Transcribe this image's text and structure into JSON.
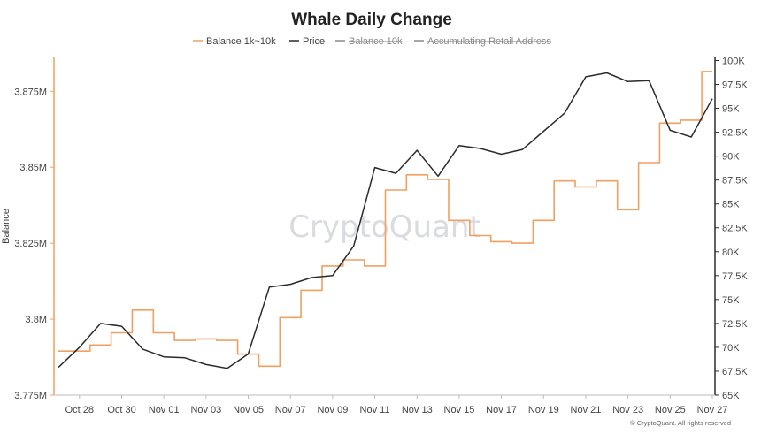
{
  "chart_data": {
    "type": "line",
    "title": "Whale Daily Change",
    "ylabel": "Balance",
    "watermark": "CryptoQuant",
    "copyright": "© CryptoQuant. All rights reserved",
    "legend": [
      {
        "name": "Balance 1k~10k",
        "color": "#f0a060",
        "active": true
      },
      {
        "name": "Price",
        "color": "#2b2b2b",
        "active": true
      },
      {
        "name": "Balance 10k",
        "color": "#888888",
        "active": false
      },
      {
        "name": "Accumulating Retail Address",
        "color": "#888888",
        "active": false
      }
    ],
    "x": [
      "Oct 27",
      "Oct 28",
      "Oct 29",
      "Oct 30",
      "Oct 31",
      "Nov 01",
      "Nov 02",
      "Nov 03",
      "Nov 04",
      "Nov 05",
      "Nov 06",
      "Nov 07",
      "Nov 08",
      "Nov 09",
      "Nov 10",
      "Nov 11",
      "Nov 12",
      "Nov 13",
      "Nov 14",
      "Nov 15",
      "Nov 16",
      "Nov 17",
      "Nov 18",
      "Nov 19",
      "Nov 20",
      "Nov 21",
      "Nov 22",
      "Nov 23",
      "Nov 24",
      "Nov 25",
      "Nov 26",
      "Nov 27"
    ],
    "x_tick_labels": [
      "Oct 28",
      "Oct 30",
      "Nov 01",
      "Nov 03",
      "Nov 05",
      "Nov 07",
      "Nov 09",
      "Nov 11",
      "Nov 13",
      "Nov 15",
      "Nov 17",
      "Nov 19",
      "Nov 21",
      "Nov 23",
      "Nov 25",
      "Nov 27"
    ],
    "y_left": {
      "ylim": [
        3.775,
        3.887
      ],
      "ticks": [
        3.775,
        3.8,
        3.825,
        3.85,
        3.875
      ],
      "tick_labels": [
        "3.775M",
        "3.8M",
        "3.825M",
        "3.85M",
        "3.875M"
      ]
    },
    "y_right": {
      "ylim": [
        65000,
        100600
      ],
      "ticks": [
        65000,
        67500,
        70000,
        72500,
        75000,
        77500,
        80000,
        82500,
        85000,
        87500,
        90000,
        92500,
        95000,
        97500,
        100000
      ],
      "tick_labels": [
        "65K",
        "67.5K",
        "70K",
        "72.5K",
        "75K",
        "77.5K",
        "80K",
        "82.5K",
        "85K",
        "87.5K",
        "90K",
        "92.5K",
        "95K",
        "97.5K",
        "100K"
      ]
    },
    "series": [
      {
        "name": "Balance 1k~10k",
        "axis": "left",
        "step": true,
        "values": [
          3.7895,
          3.7895,
          3.7915,
          3.7955,
          3.803,
          3.7955,
          3.793,
          3.7935,
          3.793,
          3.7885,
          3.7845,
          3.8005,
          3.8095,
          3.8175,
          3.8195,
          3.8175,
          3.8425,
          3.8475,
          3.846,
          3.8325,
          3.8275,
          3.8255,
          3.825,
          3.8325,
          3.8455,
          3.8435,
          3.8455,
          3.836,
          3.8515,
          3.8645,
          3.8655,
          3.8815
        ]
      },
      {
        "name": "Price",
        "axis": "right",
        "values": [
          67900,
          70000,
          72500,
          72200,
          69800,
          69000,
          68900,
          68200,
          67800,
          69300,
          76300,
          76600,
          77300,
          77500,
          80600,
          88800,
          88200,
          90600,
          87900,
          91100,
          90800,
          90200,
          90700,
          92600,
          94500,
          98300,
          98700,
          97800,
          97900,
          92700,
          92000,
          96000
        ]
      }
    ]
  }
}
